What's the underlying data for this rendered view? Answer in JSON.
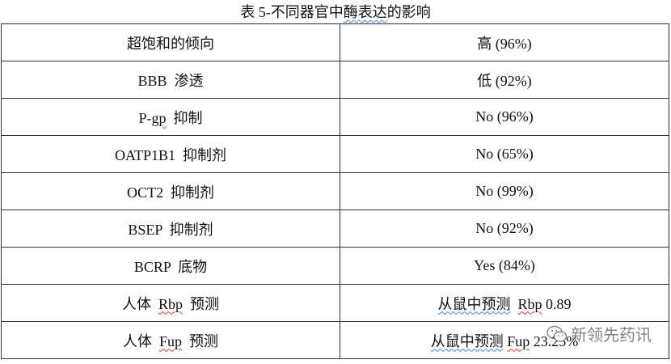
{
  "title": [
    {
      "t": "表 5-不同器官中"
    },
    {
      "t": "酶表达",
      "u": "blue"
    },
    {
      "t": "的影响"
    }
  ],
  "rows": [
    {
      "left": [
        {
          "t": "超饱和的倾向"
        }
      ],
      "right": [
        {
          "t": "高 (96%)"
        }
      ]
    },
    {
      "left": [
        {
          "t": "BBB  渗透"
        }
      ],
      "right": [
        {
          "t": "低 (92%)"
        }
      ]
    },
    {
      "left": [
        {
          "t": "P-"
        },
        {
          "t": "gp",
          "u": "red"
        },
        {
          "t": "  抑制"
        }
      ],
      "right": [
        {
          "t": "No (96%)"
        }
      ]
    },
    {
      "left": [
        {
          "t": "OATP1B1  抑制剂"
        }
      ],
      "right": [
        {
          "t": "No (65%)"
        }
      ]
    },
    {
      "left": [
        {
          "t": "OCT2  抑制剂"
        }
      ],
      "right": [
        {
          "t": "No (99%)"
        }
      ]
    },
    {
      "left": [
        {
          "t": "BSEP  抑制剂"
        }
      ],
      "right": [
        {
          "t": "No (92%)"
        }
      ]
    },
    {
      "left": [
        {
          "t": "BCRP  底物"
        }
      ],
      "right": [
        {
          "t": "Yes (84%)"
        }
      ]
    },
    {
      "left": [
        {
          "t": "人体  "
        },
        {
          "t": "Rbp",
          "u": "red"
        },
        {
          "t": "  预测"
        }
      ],
      "right": [
        {
          "t": "从鼠中预测",
          "u": "blue"
        },
        {
          "t": "  "
        },
        {
          "t": "Rbp",
          "u": "red"
        },
        {
          "t": " 0.89"
        }
      ]
    },
    {
      "left": [
        {
          "t": "人体  "
        },
        {
          "t": "Fup",
          "u": "red"
        },
        {
          "t": "  预测"
        }
      ],
      "right": [
        {
          "t": "从鼠中预测",
          "u": "blue"
        },
        {
          "t": " "
        },
        {
          "t": "Fup",
          "u": "red"
        },
        {
          "t": " 23.25%"
        }
      ]
    }
  ],
  "watermark": {
    "text": "新领先药讯",
    "icon": "wechat-icon"
  }
}
